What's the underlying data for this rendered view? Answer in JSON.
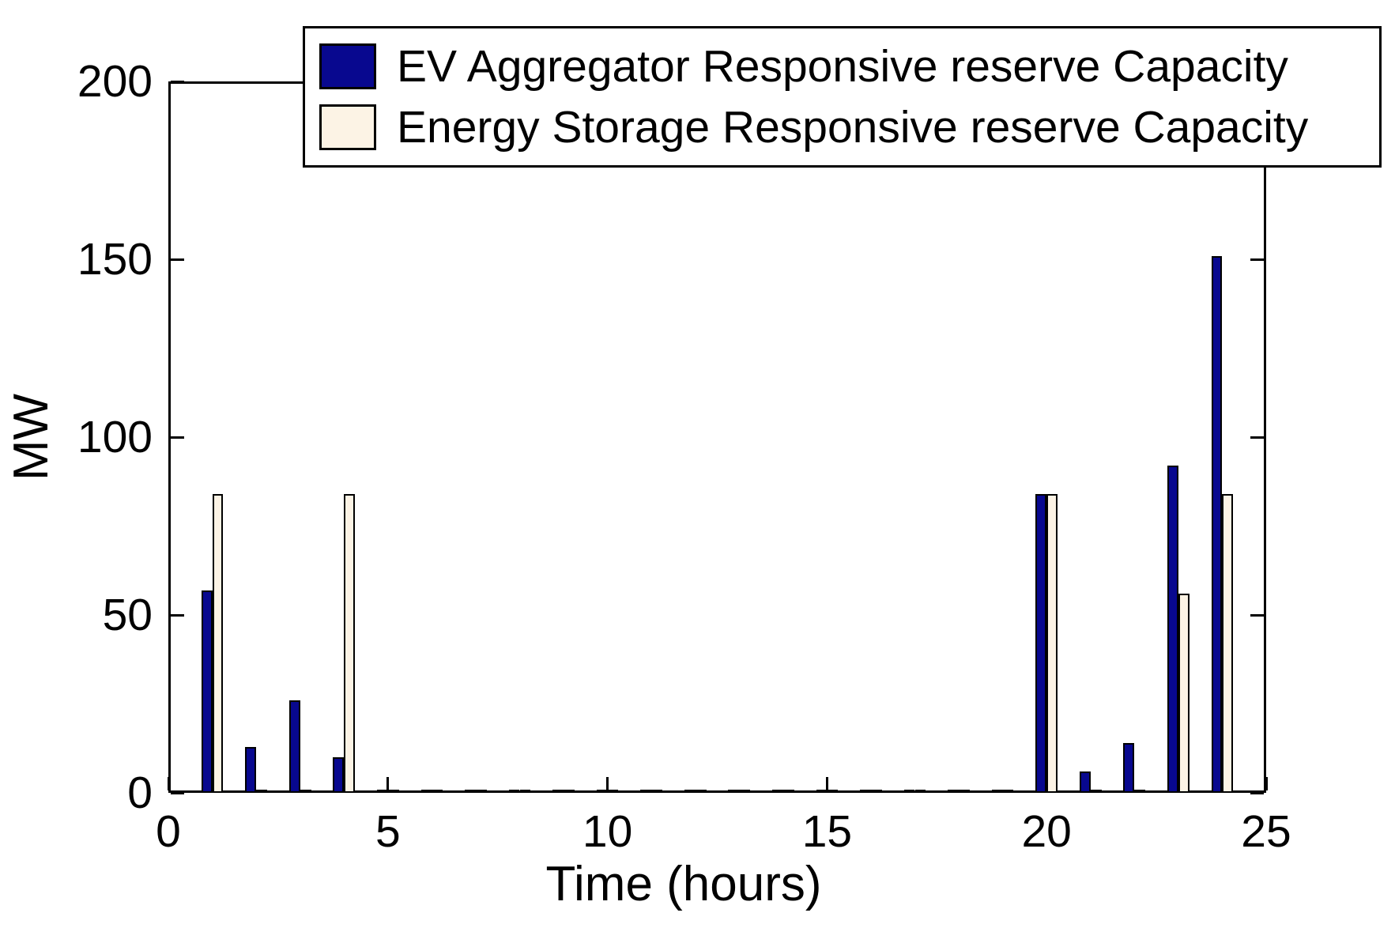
{
  "chart_data": {
    "type": "bar",
    "title": "",
    "xlabel": "Time (hours)",
    "ylabel": "MW",
    "xlim": [
      0,
      25
    ],
    "ylim": [
      0,
      200
    ],
    "x_ticks": [
      0,
      5,
      10,
      15,
      20,
      25
    ],
    "y_ticks": [
      0,
      50,
      100,
      150,
      200
    ],
    "grid": false,
    "legend_position": "top-right-inside",
    "bar_group_layout": "grouped, each bar 0.25 hour wide, pair centered on hour",
    "categories": [
      1,
      2,
      3,
      4,
      5,
      6,
      7,
      8,
      9,
      10,
      11,
      12,
      13,
      14,
      15,
      16,
      17,
      18,
      19,
      20,
      21,
      22,
      23,
      24
    ],
    "series": [
      {
        "name": "EV Aggregator Responsive reserve Capacity",
        "color": "#08088F",
        "values": [
          57,
          13,
          26,
          10,
          1,
          1,
          1,
          1,
          1,
          1,
          1,
          1,
          1,
          1,
          1,
          1,
          1,
          1,
          1,
          84,
          6,
          14,
          92,
          151
        ]
      },
      {
        "name": "Energy Storage Responsive reserve Capacity",
        "color": "#FCF3E5",
        "values": [
          84,
          1,
          1,
          84,
          1,
          1,
          1,
          1,
          1,
          1,
          1,
          1,
          1,
          1,
          1,
          1,
          1,
          1,
          1,
          84,
          1,
          1,
          56,
          84
        ]
      }
    ],
    "colors": {
      "bar_edge": "#000000",
      "axis": "#000000",
      "text": "#000000",
      "background": "#ffffff"
    }
  }
}
